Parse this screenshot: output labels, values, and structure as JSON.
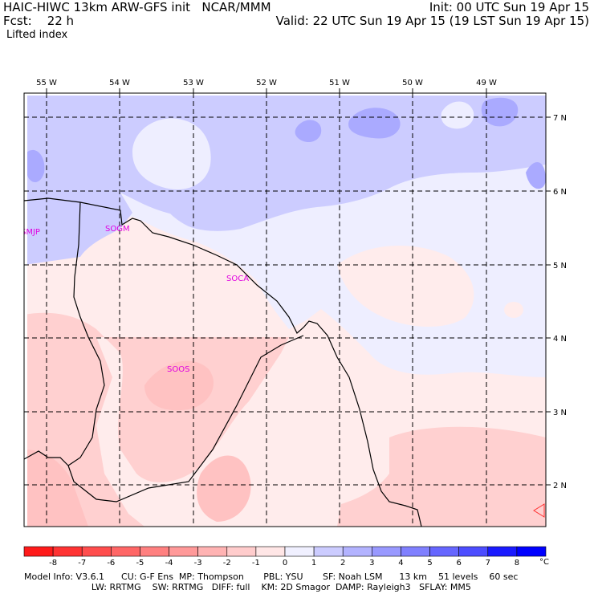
{
  "header": {
    "model_line": "HAIC-HIWC 13km ARW-GFS init   NCAR/MMM",
    "init_line": "Init: 00 UTC Sun 19 Apr 15",
    "fcst_line": "Fcst:    22 h",
    "valid_line": "Valid: 22 UTC Sun 19 Apr 15 (19 LST Sun 19 Apr 15)",
    "field_name": "Lifted index"
  },
  "map": {
    "lon_labels": [
      "55 W",
      "54 W",
      "53 W",
      "52 W",
      "51 W",
      "50 W",
      "49 W"
    ],
    "lat_labels": [
      "7 N",
      "6 N",
      "5 N",
      "4 N",
      "3 N",
      "2 N"
    ],
    "stations": [
      "SMJP",
      "SOGM",
      "SOCA",
      "SOOS"
    ],
    "station_color": "#e000e0"
  },
  "colorbar": {
    "ticks": [
      "-8",
      "-7",
      "-6",
      "-5",
      "-4",
      "-3",
      "-2",
      "-1",
      "0",
      "1",
      "2",
      "3",
      "4",
      "5",
      "6",
      "7",
      "8"
    ],
    "unit": "°C",
    "colors": [
      "#ff1a1a",
      "#ff3333",
      "#ff4d4d",
      "#ff6666",
      "#ff8080",
      "#ff9999",
      "#ffb3b3",
      "#ffcccc",
      "#ffe6e6",
      "#f0f0ff",
      "#ccccff",
      "#b3b3ff",
      "#9999ff",
      "#8080ff",
      "#6666ff",
      "#4d4dff",
      "#1a1aff",
      "#0000ff"
    ]
  },
  "footer": {
    "line1": "Model Info: V3.6.1      CU: G-F Ens  MP: Thompson       PBL: YSU       SF: Noah LSM      13 km    51 levels    60 sec",
    "line2": "                        LW: RRTMG    SW: RRTMG   DIFF: full    KM: 2D Smagor  DAMP: Rayleigh3   SFLAY: MM5"
  }
}
